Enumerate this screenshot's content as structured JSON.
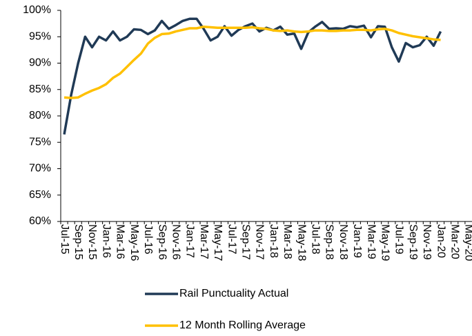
{
  "chart_data": {
    "type": "line",
    "categories": [
      "Jul-15",
      null,
      "Sep-15",
      null,
      "Nov-15",
      null,
      "Jan-16",
      null,
      "Mar-16",
      null,
      "May-16",
      null,
      "Jul-16",
      null,
      "Sep-16",
      null,
      "Nov-16",
      null,
      "Jan-17",
      null,
      "Mar-17",
      null,
      "May-17",
      null,
      "Jul-17",
      null,
      "Sep-17",
      null,
      "Nov-17",
      null,
      "Jan-18",
      null,
      "Mar-18",
      null,
      "May-18",
      null,
      "Jul-18",
      null,
      "Sep-18",
      null,
      "Nov-18",
      null,
      "Jan-19",
      null,
      "Mar-19",
      null,
      "May-19",
      null,
      "Jul-19",
      null,
      "Sep-19",
      null,
      "Nov-19",
      null,
      "Jan-20",
      null,
      "Mar-20",
      null,
      "May-20"
    ],
    "series": [
      {
        "name": "Rail Punctuality Actual",
        "color": "#203a56",
        "values": [
          76.5,
          84,
          90,
          95,
          93,
          95,
          94.3,
          96,
          94.3,
          95,
          96.4,
          96.3,
          95.5,
          96.2,
          98,
          96.5,
          97.2,
          98,
          98.4,
          98.4,
          96.5,
          94.3,
          95,
          97,
          95.2,
          96.3,
          97,
          97.5,
          96,
          96.7,
          96.2,
          96.9,
          95.4,
          95.6,
          92.7,
          95.8,
          96.9,
          97.8,
          96.5,
          96.6,
          96.5,
          97,
          96.8,
          97.1,
          94.9,
          97,
          96.9,
          93,
          90.3,
          93.8,
          93,
          93.4,
          95,
          93.3,
          96,
          null,
          null,
          null,
          null
        ]
      },
      {
        "name": "12 Month Rolling Average",
        "color": "#ffc000",
        "values": [
          83.5,
          83.4,
          83.5,
          84.2,
          84.8,
          85.3,
          86,
          87.2,
          88,
          89.3,
          90.6,
          91.8,
          93.7,
          94.8,
          95.5,
          95.6,
          96,
          96.3,
          96.6,
          96.6,
          96.9,
          96.8,
          96.7,
          96.7,
          96.7,
          96.7,
          96.7,
          96.8,
          96.6,
          96.5,
          96.2,
          96.1,
          96.2,
          96,
          95.9,
          96,
          96.2,
          96.2,
          96.1,
          96.1,
          96.2,
          96.2,
          96.3,
          96.3,
          96.2,
          96.4,
          96.5,
          96.2,
          95.7,
          95.4,
          95.1,
          94.9,
          94.7,
          94.5,
          94.4,
          null,
          null,
          null,
          null
        ]
      }
    ],
    "ylim": [
      60,
      100
    ],
    "yticks": [
      {
        "value": 60,
        "label": "60%"
      },
      {
        "value": 65,
        "label": "65%"
      },
      {
        "value": 70,
        "label": "70%"
      },
      {
        "value": 75,
        "label": "75%"
      },
      {
        "value": 80,
        "label": "80%"
      },
      {
        "value": 85,
        "label": "85%"
      },
      {
        "value": 90,
        "label": "90%"
      },
      {
        "value": 95,
        "label": "95%"
      },
      {
        "value": 100,
        "label": "100%"
      }
    ],
    "grid": false
  }
}
